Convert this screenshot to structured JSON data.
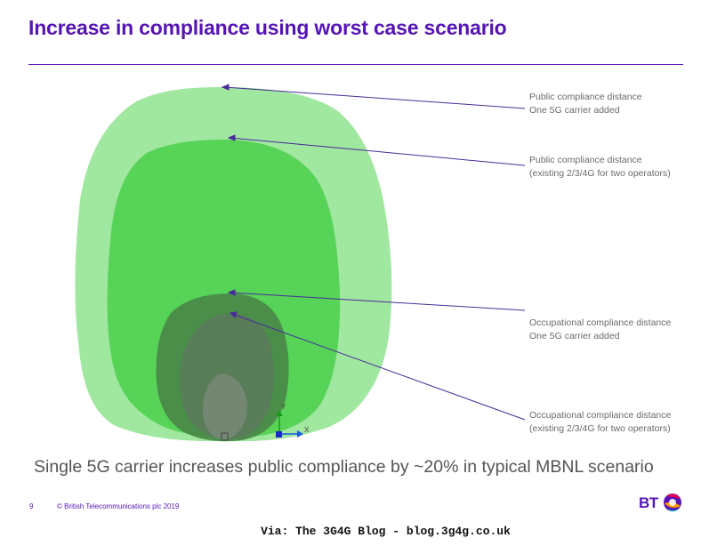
{
  "slide": {
    "title": "Increase in compliance using worst case scenario",
    "summary": "Single 5G carrier increases public compliance by ~20% in typical MBNL scenario",
    "page_number": "9",
    "copyright": "© British Telecommunications plc 2019",
    "logo_text": "BT"
  },
  "annotations": [
    {
      "line1": "Public compliance distance",
      "line2": "One 5G carrier added"
    },
    {
      "line1": "Public compliance distance",
      "line2": "(existing 2/3/4G for two operators)"
    },
    {
      "line1": "Occupational compliance distance",
      "line2": "One 5G carrier added"
    },
    {
      "line1": "Occupational compliance distance",
      "line2": "(existing 2/3/4G for two operators)"
    }
  ],
  "watermark": "Via: The 3G4G Blog - blog.3g4g.co.uk",
  "colors": {
    "brand": "#5514b4",
    "outer_public": "#9be69b",
    "inner_public": "#4fd24f",
    "occupational_outer": "#4a8a4a",
    "occupational_inner": "#5a7a5a"
  }
}
